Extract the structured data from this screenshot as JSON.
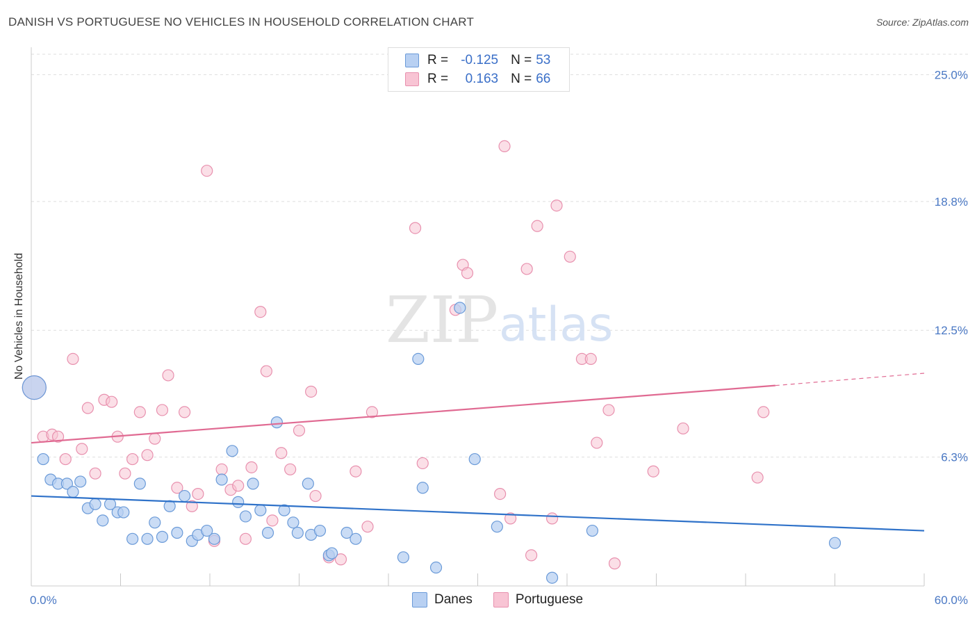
{
  "title": "DANISH VS PORTUGUESE NO VEHICLES IN HOUSEHOLD CORRELATION CHART",
  "source": "Source: ZipAtlas.com",
  "watermark": {
    "zip": "ZIP",
    "atlas": "atlas"
  },
  "colors": {
    "danes_fill": "#b8d0f2",
    "danes_stroke": "#6a9ad8",
    "danes_line": "#2f72c9",
    "portuguese_fill": "#f8c4d4",
    "portuguese_stroke": "#e890ae",
    "portuguese_line": "#e06a92",
    "axis_label": "#4a78c4",
    "grid": "#dddddd"
  },
  "legend": {
    "danes": {
      "r_label": "R =",
      "r_value": "-0.125",
      "n_label": "N =",
      "n_value": "53"
    },
    "portuguese": {
      "r_label": "R =",
      "r_value": "0.163",
      "n_label": "N =",
      "n_value": "66"
    }
  },
  "bottom_legend": {
    "danes": "Danes",
    "portuguese": "Portuguese"
  },
  "chart_data": {
    "type": "scatter",
    "title": "DANISH VS PORTUGUESE NO VEHICLES IN HOUSEHOLD CORRELATION CHART",
    "xlabel": "",
    "ylabel": "No Vehicles in Household",
    "xlim": [
      0,
      60
    ],
    "ylim": [
      0,
      26
    ],
    "x_tick_labels": [
      "0.0%",
      "60.0%"
    ],
    "y_ticks": [
      6.3,
      12.5,
      18.8,
      25.0
    ],
    "y_tick_labels": [
      "6.3%",
      "12.5%",
      "18.8%",
      "25.0%"
    ],
    "grid": true,
    "series": [
      {
        "name": "Danes",
        "trend": {
          "x": [
            0,
            60
          ],
          "y": [
            4.4,
            2.7
          ]
        },
        "points": [
          {
            "x": 0.2,
            "y": 9.7,
            "big": true
          },
          {
            "x": 0.8,
            "y": 6.2
          },
          {
            "x": 1.3,
            "y": 5.2
          },
          {
            "x": 1.8,
            "y": 5.0
          },
          {
            "x": 2.4,
            "y": 5.0
          },
          {
            "x": 2.8,
            "y": 4.6
          },
          {
            "x": 3.3,
            "y": 5.1
          },
          {
            "x": 3.8,
            "y": 3.8
          },
          {
            "x": 4.3,
            "y": 4.0
          },
          {
            "x": 4.8,
            "y": 3.2
          },
          {
            "x": 5.3,
            "y": 4.0
          },
          {
            "x": 5.8,
            "y": 3.6
          },
          {
            "x": 6.2,
            "y": 3.6
          },
          {
            "x": 6.8,
            "y": 2.3
          },
          {
            "x": 7.3,
            "y": 5.0
          },
          {
            "x": 7.8,
            "y": 2.3
          },
          {
            "x": 8.3,
            "y": 3.1
          },
          {
            "x": 8.8,
            "y": 2.4
          },
          {
            "x": 9.3,
            "y": 3.9
          },
          {
            "x": 9.8,
            "y": 2.6
          },
          {
            "x": 10.3,
            "y": 4.4
          },
          {
            "x": 10.8,
            "y": 2.2
          },
          {
            "x": 11.2,
            "y": 2.5
          },
          {
            "x": 11.8,
            "y": 2.7
          },
          {
            "x": 12.3,
            "y": 2.3
          },
          {
            "x": 12.8,
            "y": 5.2
          },
          {
            "x": 13.5,
            "y": 6.6
          },
          {
            "x": 13.9,
            "y": 4.1
          },
          {
            "x": 14.4,
            "y": 3.4
          },
          {
            "x": 14.9,
            "y": 5.0
          },
          {
            "x": 15.4,
            "y": 3.7
          },
          {
            "x": 15.9,
            "y": 2.6
          },
          {
            "x": 16.5,
            "y": 8.0
          },
          {
            "x": 17.0,
            "y": 3.7
          },
          {
            "x": 17.6,
            "y": 3.1
          },
          {
            "x": 17.9,
            "y": 2.6
          },
          {
            "x": 18.6,
            "y": 5.0
          },
          {
            "x": 18.8,
            "y": 2.5
          },
          {
            "x": 19.4,
            "y": 2.7
          },
          {
            "x": 20.0,
            "y": 1.5
          },
          {
            "x": 20.2,
            "y": 1.6
          },
          {
            "x": 21.2,
            "y": 2.6
          },
          {
            "x": 21.8,
            "y": 2.3
          },
          {
            "x": 25.0,
            "y": 1.4
          },
          {
            "x": 26.0,
            "y": 11.1
          },
          {
            "x": 26.3,
            "y": 4.8
          },
          {
            "x": 27.2,
            "y": 0.9
          },
          {
            "x": 28.8,
            "y": 13.6
          },
          {
            "x": 29.8,
            "y": 6.2
          },
          {
            "x": 31.3,
            "y": 2.9
          },
          {
            "x": 35.0,
            "y": 0.4
          },
          {
            "x": 37.7,
            "y": 2.7
          },
          {
            "x": 54.0,
            "y": 2.1
          }
        ]
      },
      {
        "name": "Portuguese",
        "trend": {
          "x": [
            0,
            50
          ],
          "y": [
            7.0,
            9.8
          ],
          "dashed_to": {
            "x": 60,
            "y": 10.4
          }
        },
        "points": [
          {
            "x": 0.2,
            "y": 9.7,
            "big": true
          },
          {
            "x": 0.8,
            "y": 7.3
          },
          {
            "x": 1.4,
            "y": 7.4
          },
          {
            "x": 1.8,
            "y": 7.3
          },
          {
            "x": 2.3,
            "y": 6.2
          },
          {
            "x": 2.8,
            "y": 11.1
          },
          {
            "x": 3.4,
            "y": 6.7
          },
          {
            "x": 3.8,
            "y": 8.7
          },
          {
            "x": 4.3,
            "y": 5.5
          },
          {
            "x": 4.9,
            "y": 9.1
          },
          {
            "x": 5.4,
            "y": 9.0
          },
          {
            "x": 5.8,
            "y": 7.3
          },
          {
            "x": 6.3,
            "y": 5.5
          },
          {
            "x": 6.8,
            "y": 6.2
          },
          {
            "x": 7.3,
            "y": 8.5
          },
          {
            "x": 7.8,
            "y": 6.4
          },
          {
            "x": 8.3,
            "y": 7.2
          },
          {
            "x": 8.8,
            "y": 8.6
          },
          {
            "x": 9.2,
            "y": 10.3
          },
          {
            "x": 9.8,
            "y": 4.8
          },
          {
            "x": 10.3,
            "y": 8.5
          },
          {
            "x": 10.8,
            "y": 3.9
          },
          {
            "x": 11.2,
            "y": 4.5
          },
          {
            "x": 11.8,
            "y": 20.3
          },
          {
            "x": 12.3,
            "y": 2.2
          },
          {
            "x": 12.8,
            "y": 5.7
          },
          {
            "x": 13.4,
            "y": 4.7
          },
          {
            "x": 13.9,
            "y": 4.9
          },
          {
            "x": 14.4,
            "y": 2.3
          },
          {
            "x": 14.8,
            "y": 5.8
          },
          {
            "x": 15.4,
            "y": 13.4
          },
          {
            "x": 15.8,
            "y": 10.5
          },
          {
            "x": 16.2,
            "y": 3.2
          },
          {
            "x": 16.8,
            "y": 6.5
          },
          {
            "x": 17.4,
            "y": 5.7
          },
          {
            "x": 18.0,
            "y": 7.6
          },
          {
            "x": 18.8,
            "y": 9.5
          },
          {
            "x": 19.1,
            "y": 4.4
          },
          {
            "x": 20.0,
            "y": 1.4
          },
          {
            "x": 20.8,
            "y": 1.3
          },
          {
            "x": 21.8,
            "y": 5.6
          },
          {
            "x": 22.6,
            "y": 2.9
          },
          {
            "x": 22.9,
            "y": 8.5
          },
          {
            "x": 25.8,
            "y": 17.5
          },
          {
            "x": 26.3,
            "y": 6.0
          },
          {
            "x": 28.5,
            "y": 13.5
          },
          {
            "x": 29.0,
            "y": 15.7
          },
          {
            "x": 29.3,
            "y": 15.3
          },
          {
            "x": 31.5,
            "y": 4.5
          },
          {
            "x": 31.8,
            "y": 21.5
          },
          {
            "x": 32.2,
            "y": 3.3
          },
          {
            "x": 33.3,
            "y": 15.5
          },
          {
            "x": 33.6,
            "y": 1.5
          },
          {
            "x": 34.0,
            "y": 17.6
          },
          {
            "x": 35.0,
            "y": 3.3
          },
          {
            "x": 35.3,
            "y": 18.6
          },
          {
            "x": 36.2,
            "y": 16.1
          },
          {
            "x": 37.0,
            "y": 11.1
          },
          {
            "x": 37.6,
            "y": 11.1
          },
          {
            "x": 38.0,
            "y": 7.0
          },
          {
            "x": 38.8,
            "y": 8.6
          },
          {
            "x": 39.2,
            "y": 1.1
          },
          {
            "x": 41.8,
            "y": 5.6
          },
          {
            "x": 43.8,
            "y": 7.7
          },
          {
            "x": 48.8,
            "y": 5.3
          },
          {
            "x": 49.2,
            "y": 8.5
          }
        ]
      }
    ]
  }
}
